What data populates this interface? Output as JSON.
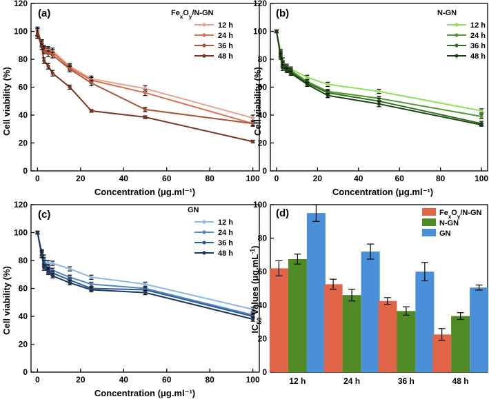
{
  "colors": {
    "fe_12": "#e8a28c",
    "fe_24": "#d9704f",
    "fe_36": "#ab5437",
    "fe_48": "#7b3420",
    "ngn_12": "#8ee05a",
    "ngn_24": "#4f9a30",
    "ngn_36": "#2f6e1f",
    "ngn_48": "#1a3f10",
    "gn_12": "#8db8e3",
    "gn_24": "#4f86c4",
    "gn_36": "#2e5a98",
    "gn_48": "#1d365e",
    "bar_fe": "#e06448",
    "bar_ngn": "#4f8a24",
    "bar_gn": "#4a90d9"
  },
  "chart_data": [
    {
      "type": "line",
      "panel": "(a)",
      "legend_title": "FexOy/N-GN",
      "legend_title_parts": [
        "Fe",
        "x",
        "O",
        "y",
        "/N-GN"
      ],
      "xlabel": "Concentration (μg.ml⁻¹)",
      "ylabel": "Cell viability (%)",
      "xlim": [
        -3,
        103
      ],
      "ylim": [
        0,
        120
      ],
      "xticks": [
        0,
        20,
        40,
        60,
        80,
        100
      ],
      "yticks": [
        0,
        20,
        40,
        60,
        80,
        100,
        120
      ],
      "x": [
        0,
        2,
        3,
        5,
        7,
        15,
        25,
        50,
        100
      ],
      "series": [
        {
          "name": "12 h",
          "color_key": "fe_12",
          "values": [
            100,
            92,
            88,
            87,
            86,
            75,
            66,
            59,
            38
          ],
          "errors": [
            3,
            2,
            2,
            2,
            2,
            2,
            2,
            2,
            2
          ]
        },
        {
          "name": "24 h",
          "color_key": "fe_24",
          "values": [
            100,
            92,
            87,
            86,
            85,
            74,
            65,
            56,
            34
          ],
          "errors": [
            3,
            2,
            2,
            2,
            2,
            2,
            2,
            2,
            2
          ]
        },
        {
          "name": "36 h",
          "color_key": "fe_36",
          "values": [
            99,
            91,
            86,
            84,
            83,
            73,
            63,
            44,
            34
          ],
          "errors": [
            3,
            2,
            2,
            2,
            2,
            2,
            2,
            1.5,
            1.5
          ]
        },
        {
          "name": "48 h",
          "color_key": "fe_48",
          "values": [
            98,
            89,
            79,
            75,
            70,
            60,
            43,
            38.5,
            21
          ],
          "errors": [
            3,
            2,
            2,
            2,
            2,
            1.5,
            1,
            1,
            1
          ]
        }
      ]
    },
    {
      "type": "line",
      "panel": "(b)",
      "legend_title": "N-GN",
      "xlabel": "Concentration (μg.ml⁻¹)",
      "ylabel": "Cell viability (%)",
      "xlim": [
        -3,
        103
      ],
      "ylim": [
        0,
        120
      ],
      "xticks": [
        0,
        20,
        40,
        60,
        80,
        100
      ],
      "yticks": [
        0,
        20,
        40,
        60,
        80,
        100,
        120
      ],
      "x": [
        0,
        2,
        3,
        5,
        7,
        15,
        25,
        50,
        100
      ],
      "series": [
        {
          "name": "12 h",
          "color_key": "ngn_12",
          "values": [
            100,
            85,
            79,
            75,
            73,
            67,
            62,
            57,
            43
          ],
          "errors": [
            1,
            2,
            2,
            1.5,
            1.5,
            1.5,
            1.5,
            1.5,
            1.5
          ]
        },
        {
          "name": "24 h",
          "color_key": "ngn_24",
          "values": [
            100,
            84,
            77,
            74,
            72,
            64,
            57,
            52,
            39
          ],
          "errors": [
            1,
            2,
            2,
            1.5,
            1.5,
            1.5,
            1.5,
            1.5,
            1.5
          ]
        },
        {
          "name": "36 h",
          "color_key": "ngn_36",
          "values": [
            100,
            83,
            76,
            73,
            71,
            63,
            56,
            50,
            34
          ],
          "errors": [
            1,
            2,
            2,
            1.5,
            1.5,
            1.5,
            1.5,
            2,
            1.5
          ]
        },
        {
          "name": "48 h",
          "color_key": "ngn_48",
          "values": [
            100,
            82,
            74,
            72,
            70,
            62,
            54,
            48,
            33
          ],
          "errors": [
            1,
            2,
            2,
            1.5,
            1.5,
            1.5,
            1.5,
            2,
            1
          ]
        }
      ]
    },
    {
      "type": "line",
      "panel": "(c)",
      "legend_title": "GN",
      "xlabel": "Concentration (μg.ml⁻¹)",
      "ylabel": "Cell viability (%)",
      "xlim": [
        -3,
        103
      ],
      "ylim": [
        0,
        120
      ],
      "xticks": [
        0,
        20,
        40,
        60,
        80,
        100
      ],
      "yticks": [
        0,
        20,
        40,
        60,
        80,
        100,
        120
      ],
      "x": [
        0,
        2,
        3,
        5,
        7,
        15,
        25,
        50,
        100
      ],
      "series": [
        {
          "name": "12 h",
          "color_key": "gn_12",
          "values": [
            100,
            86,
            82,
            78,
            78,
            74,
            68,
            63,
            45
          ],
          "errors": [
            1,
            2,
            2,
            2,
            1.5,
            1.5,
            1.5,
            1.5,
            1.5
          ]
        },
        {
          "name": "24 h",
          "color_key": "gn_24",
          "values": [
            100,
            85,
            80,
            75,
            73,
            68,
            63,
            60,
            41
          ],
          "errors": [
            1,
            2,
            2,
            2,
            1.5,
            1.5,
            1.5,
            1.5,
            1.5
          ]
        },
        {
          "name": "36 h",
          "color_key": "gn_36",
          "values": [
            100,
            84,
            78,
            73,
            71,
            66,
            60,
            59,
            40
          ],
          "errors": [
            1,
            2,
            2,
            2,
            1.5,
            1.5,
            1.5,
            1.5,
            1.5
          ]
        },
        {
          "name": "48 h",
          "color_key": "gn_48",
          "values": [
            100,
            84,
            75,
            72,
            69,
            64,
            59,
            57,
            38
          ],
          "errors": [
            1,
            2,
            2,
            2,
            1.5,
            1.5,
            1.5,
            1.5,
            1.5
          ]
        }
      ]
    },
    {
      "type": "bar",
      "panel": "(d)",
      "ylabel_parts": [
        "IC",
        "50",
        " Values (μg.mL",
        "-1",
        ")"
      ],
      "categories": [
        "12 h",
        "24 h",
        "36 h",
        "48 h"
      ],
      "ylim": [
        0,
        100
      ],
      "yticks": [
        0,
        20,
        40,
        60,
        80,
        100
      ],
      "legend_labels": [
        "FexOy/N-GN",
        "N-GN",
        "GN"
      ],
      "series": [
        {
          "name": "FexOy/N-GN",
          "name_parts": [
            "Fe",
            "x",
            "O",
            "y",
            "/N-GN"
          ],
          "color_key": "bar_fe",
          "values": [
            62,
            52.5,
            42.5,
            22.5
          ],
          "errors": [
            4.5,
            3,
            2,
            3.5
          ]
        },
        {
          "name": "N-GN",
          "color_key": "bar_ngn",
          "values": [
            67.5,
            46,
            36.5,
            33.5
          ],
          "errors": [
            3,
            3.5,
            2.5,
            2
          ]
        },
        {
          "name": "GN",
          "color_key": "bar_gn",
          "values": [
            95,
            72,
            60,
            50.5
          ],
          "errors": [
            5,
            4.5,
            5.5,
            1.5
          ]
        }
      ]
    }
  ]
}
